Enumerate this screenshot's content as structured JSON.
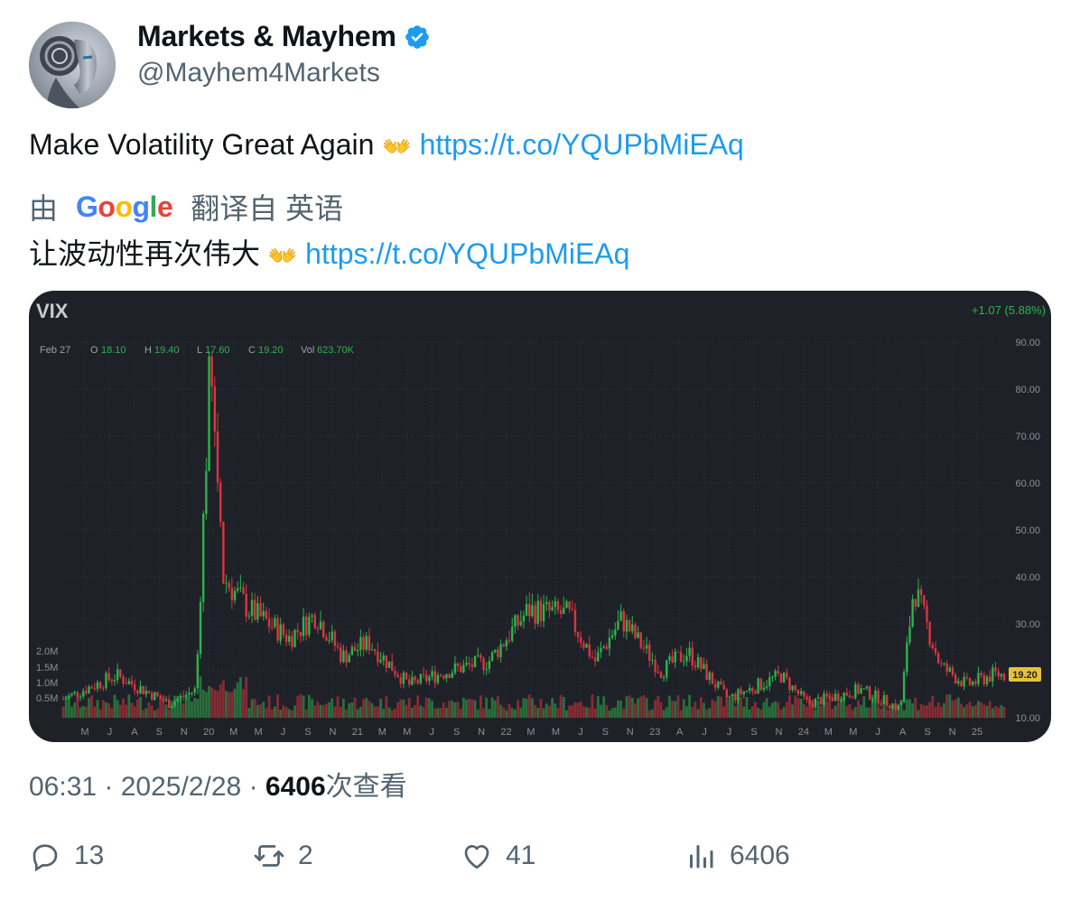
{
  "author": {
    "name": "Markets & Mayhem",
    "handle": "@Mayhem4Markets",
    "verified": true,
    "verified_color": "#1d9bf0",
    "avatar_icon": "robot-avatar-icon"
  },
  "tweet": {
    "text": "Make Volatility Great Again",
    "emoji": "👐",
    "link": "https://t.co/YQUPbMiEAq"
  },
  "translation": {
    "prefix": "由",
    "provider": "Google",
    "suffix": "翻译自 英语",
    "text": "让波动性再次伟大",
    "emoji": "👐",
    "link": "https://t.co/YQUPbMiEAq"
  },
  "chart_data": {
    "type": "candlestick",
    "symbol": "VIX",
    "change": "+1.07 (5.88%)",
    "ohlc": {
      "date": "Feb 27",
      "O": "18.10",
      "H": "19.40",
      "L": "17.60",
      "C": "19.20",
      "Vol": "623.70K"
    },
    "price_label": "19.20",
    "y_ticks": [
      "90.00",
      "80.00",
      "70.00",
      "60.00",
      "50.00",
      "40.00",
      "30.00",
      "20.00",
      "10.00"
    ],
    "ylim": [
      10,
      90
    ],
    "volume_ticks": [
      "2.0M",
      "1.5M",
      "1.0M",
      "0.5M"
    ],
    "x_ticks": [
      "M",
      "J",
      "A",
      "S",
      "N",
      "20",
      "M",
      "M",
      "J",
      "S",
      "N",
      "21",
      "M",
      "M",
      "J",
      "S",
      "N",
      "22",
      "M",
      "M",
      "J",
      "S",
      "N",
      "23",
      "A",
      "J",
      "J",
      "S",
      "N",
      "24",
      "M",
      "M",
      "J",
      "A",
      "S",
      "N",
      "25"
    ],
    "up_color": "#2db34a",
    "down_color": "#d9363e",
    "series_approx_close": [
      {
        "x": "2019-04",
        "y": 14
      },
      {
        "x": "2019-08",
        "y": 19
      },
      {
        "x": "2019-12",
        "y": 13
      },
      {
        "x": "2020-02",
        "y": 16
      },
      {
        "x": "2020-03",
        "y": 82
      },
      {
        "x": "2020-04",
        "y": 40
      },
      {
        "x": "2020-06",
        "y": 33
      },
      {
        "x": "2020-09",
        "y": 27
      },
      {
        "x": "2020-11",
        "y": 32
      },
      {
        "x": "2021-01",
        "y": 23
      },
      {
        "x": "2021-03",
        "y": 26
      },
      {
        "x": "2021-06",
        "y": 17
      },
      {
        "x": "2021-09",
        "y": 20
      },
      {
        "x": "2021-12",
        "y": 22
      },
      {
        "x": "2022-03",
        "y": 33
      },
      {
        "x": "2022-06",
        "y": 32
      },
      {
        "x": "2022-08",
        "y": 22
      },
      {
        "x": "2022-10",
        "y": 31
      },
      {
        "x": "2023-01",
        "y": 20
      },
      {
        "x": "2023-03",
        "y": 24
      },
      {
        "x": "2023-06",
        "y": 14
      },
      {
        "x": "2023-10",
        "y": 19
      },
      {
        "x": "2023-12",
        "y": 13
      },
      {
        "x": "2024-04",
        "y": 16
      },
      {
        "x": "2024-07",
        "y": 12
      },
      {
        "x": "2024-08",
        "y": 38
      },
      {
        "x": "2024-10",
        "y": 21
      },
      {
        "x": "2024-12",
        "y": 17
      },
      {
        "x": "2025-02",
        "y": 19.2
      }
    ]
  },
  "meta": {
    "time": "06:31",
    "date": "2025/2/28",
    "views_count": "6406",
    "views_label": "次查看"
  },
  "actions": {
    "replies": "13",
    "reposts": "2",
    "likes": "41",
    "views": "6406"
  }
}
